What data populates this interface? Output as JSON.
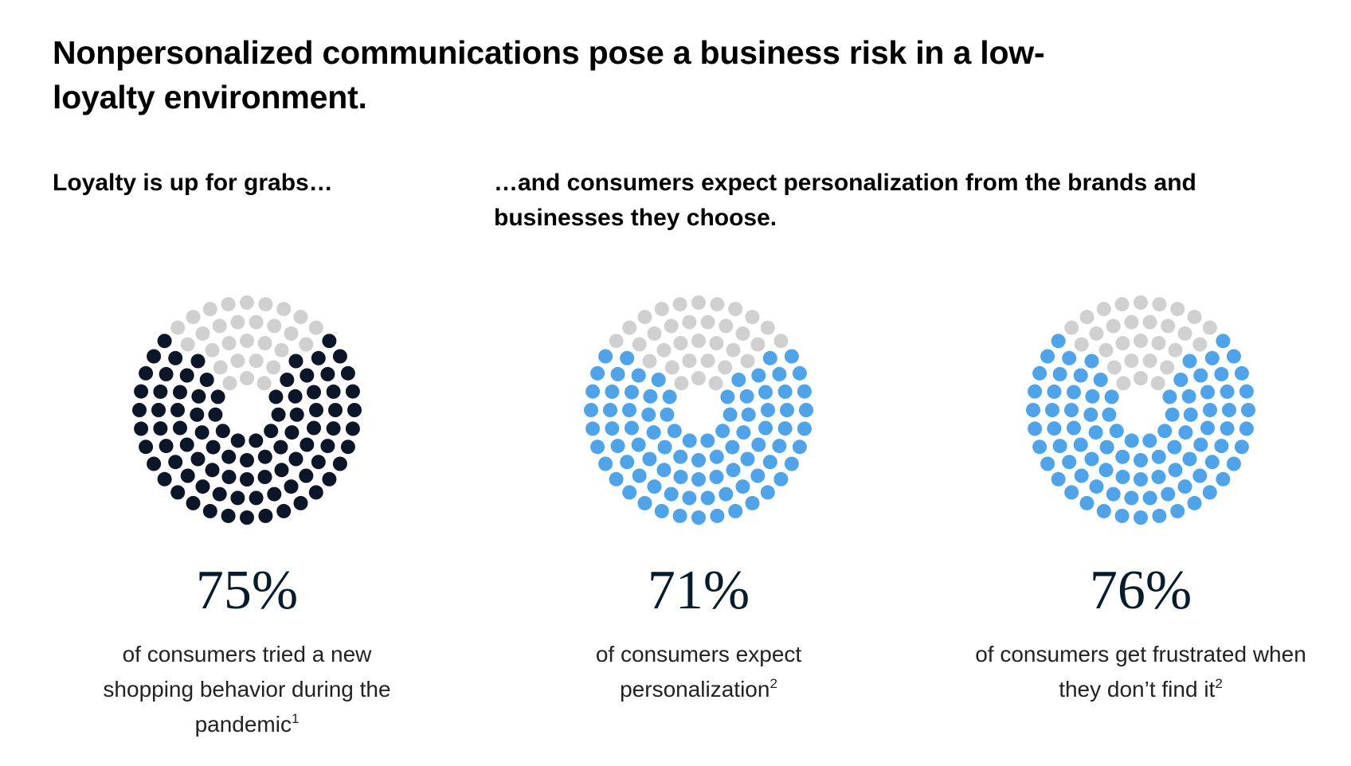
{
  "title": "Nonpersonalized communications pose a business risk in a low-loyalty environment.",
  "subheads": {
    "left": "Loyalty is up for grabs…",
    "right": "…and consumers expect personalization from the brands and businesses they choose."
  },
  "colors": {
    "empty_dot": "#d0d0d0",
    "navy": "#0b1628",
    "blue": "#4ea4ea",
    "text": "#222222"
  },
  "chart_data": [
    {
      "type": "dot-pie",
      "value": 75,
      "value_label": "75%",
      "fill_color": "#0b1628",
      "empty_color": "#d0d0d0",
      "caption": "of consumers tried a new shopping behavior during the pandemic",
      "footnote": "1"
    },
    {
      "type": "dot-pie",
      "value": 71,
      "value_label": "71%",
      "fill_color": "#4ea4ea",
      "empty_color": "#d0d0d0",
      "caption": "of consumers expect personalization",
      "footnote": "2"
    },
    {
      "type": "dot-pie",
      "value": 76,
      "value_label": "76%",
      "fill_color": "#4ea4ea",
      "empty_color": "#d0d0d0",
      "caption": "of consumers get frustrated when they don’t find it",
      "footnote": "2"
    }
  ]
}
